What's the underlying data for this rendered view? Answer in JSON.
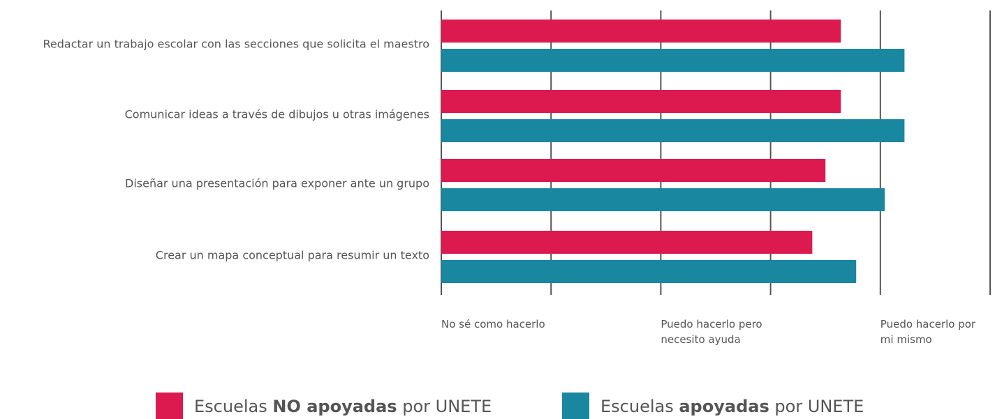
{
  "chart_data": {
    "type": "barh",
    "categories": [
      "Redactar un trabajo escolar con las secciones que solicita el maestro",
      "Comunicar ideas a través de dibujos u otras imágenes",
      "Diseñar una presentación para exponer ante un grupo",
      "Crear un mapa conceptual para resumir un texto"
    ],
    "series": [
      {
        "name": [
          "Escuelas ",
          "NO apoyadas",
          " por UNETE"
        ],
        "color": "#dc1a50",
        "values": [
          2.82,
          2.82,
          2.75,
          2.69
        ]
      },
      {
        "name": [
          "Escuelas ",
          "apoyadas",
          " por UNETE"
        ],
        "color": "#1a87a0",
        "values": [
          3.11,
          3.11,
          3.02,
          2.89
        ]
      }
    ],
    "xlim": [
      1,
      3.5
    ],
    "xticks": [
      {
        "value": 1,
        "label": "No sé como hacerlo"
      },
      {
        "value": 1.5,
        "label": null
      },
      {
        "value": 2,
        "label": "Puedo hacerlo pero\nnecesito ayuda"
      },
      {
        "value": 2.5,
        "label": null
      },
      {
        "value": 3,
        "label": "Puedo hacerlo por\nmi mismo"
      },
      {
        "value": 3.5,
        "label": null
      }
    ],
    "grid": true,
    "legend": "bottom"
  }
}
